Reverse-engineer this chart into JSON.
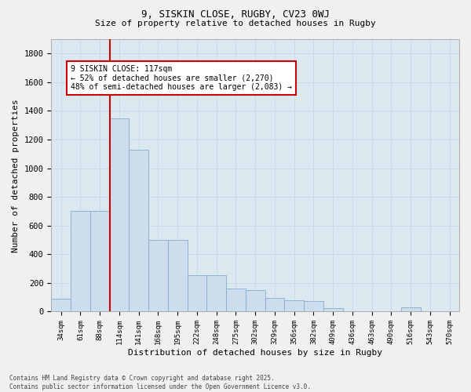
{
  "title1": "9, SISKIN CLOSE, RUGBY, CV23 0WJ",
  "title2": "Size of property relative to detached houses in Rugby",
  "xlabel": "Distribution of detached houses by size in Rugby",
  "ylabel": "Number of detached properties",
  "bar_color": "#ccdded",
  "bar_edge_color": "#88aacc",
  "vline_color": "#cc0000",
  "annotation_text": "9 SISKIN CLOSE: 117sqm\n← 52% of detached houses are smaller (2,270)\n48% of semi-detached houses are larger (2,083) →",
  "annotation_box_color": "#cc0000",
  "footnote1": "Contains HM Land Registry data © Crown copyright and database right 2025.",
  "footnote2": "Contains public sector information licensed under the Open Government Licence v3.0.",
  "categories": [
    "34sqm",
    "61sqm",
    "88sqm",
    "114sqm",
    "141sqm",
    "168sqm",
    "195sqm",
    "222sqm",
    "248sqm",
    "275sqm",
    "302sqm",
    "329sqm",
    "356sqm",
    "382sqm",
    "409sqm",
    "436sqm",
    "463sqm",
    "490sqm",
    "516sqm",
    "543sqm",
    "570sqm"
  ],
  "values": [
    90,
    700,
    700,
    1350,
    1130,
    500,
    500,
    255,
    255,
    160,
    150,
    95,
    80,
    75,
    25,
    5,
    5,
    5,
    30,
    5,
    5
  ],
  "vline_bin_index": 3,
  "ylim": [
    0,
    1900
  ],
  "yticks": [
    0,
    200,
    400,
    600,
    800,
    1000,
    1200,
    1400,
    1600,
    1800
  ],
  "background_color": "#f0f0f0",
  "plot_bg_color": "#dce8f0"
}
